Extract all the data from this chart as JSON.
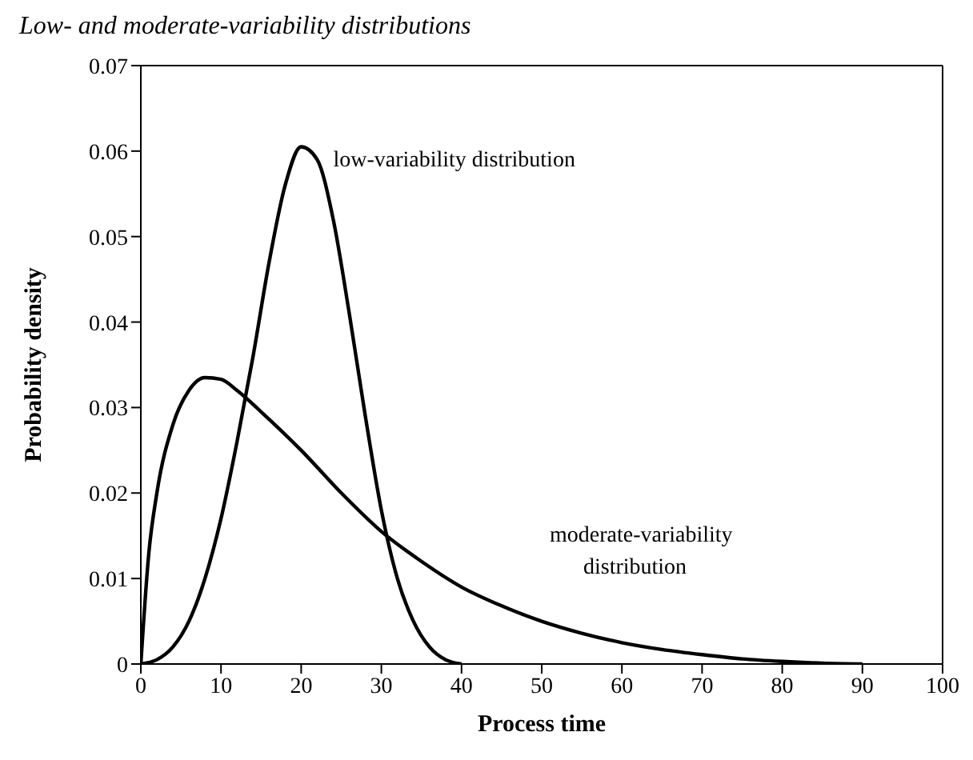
{
  "chart_data": {
    "type": "line",
    "title": "Low- and moderate-variability distributions",
    "xlabel": "Process time",
    "ylabel": "Probability density",
    "xlim": [
      0,
      100
    ],
    "xticks": [
      0,
      10,
      20,
      30,
      40,
      50,
      60,
      70,
      80,
      90,
      100
    ],
    "ylim": [
      0,
      0.07
    ],
    "yticks": [
      0,
      0.01,
      0.02,
      0.03,
      0.04,
      0.05,
      0.06,
      0.07
    ],
    "marker": "none",
    "line_style": "solid",
    "series": [
      {
        "name": "low-variability distribution",
        "color": "#000000",
        "x": [
          0,
          2,
          4,
          6,
          8,
          10,
          12,
          14,
          16,
          18,
          20,
          22,
          24,
          26,
          28,
          30,
          32,
          34,
          36,
          38,
          40
        ],
        "values": [
          0,
          0.0005,
          0.002,
          0.005,
          0.01,
          0.017,
          0.026,
          0.036,
          0.047,
          0.056,
          0.0605,
          0.059,
          0.052,
          0.041,
          0.029,
          0.018,
          0.01,
          0.005,
          0.002,
          0.0005,
          0
        ]
      },
      {
        "name": "moderate-variability distribution",
        "color": "#000000",
        "x": [
          0,
          1,
          2,
          4,
          6,
          8,
          10,
          12,
          15,
          20,
          25,
          30,
          35,
          40,
          45,
          50,
          55,
          60,
          65,
          70,
          75,
          80,
          85,
          90
        ],
        "values": [
          0,
          0.013,
          0.02,
          0.028,
          0.032,
          0.0335,
          0.0333,
          0.032,
          0.0295,
          0.025,
          0.02,
          0.0155,
          0.012,
          0.009,
          0.0068,
          0.005,
          0.0036,
          0.0025,
          0.0017,
          0.0011,
          0.0006,
          0.0003,
          0.0001,
          0
        ]
      }
    ]
  }
}
